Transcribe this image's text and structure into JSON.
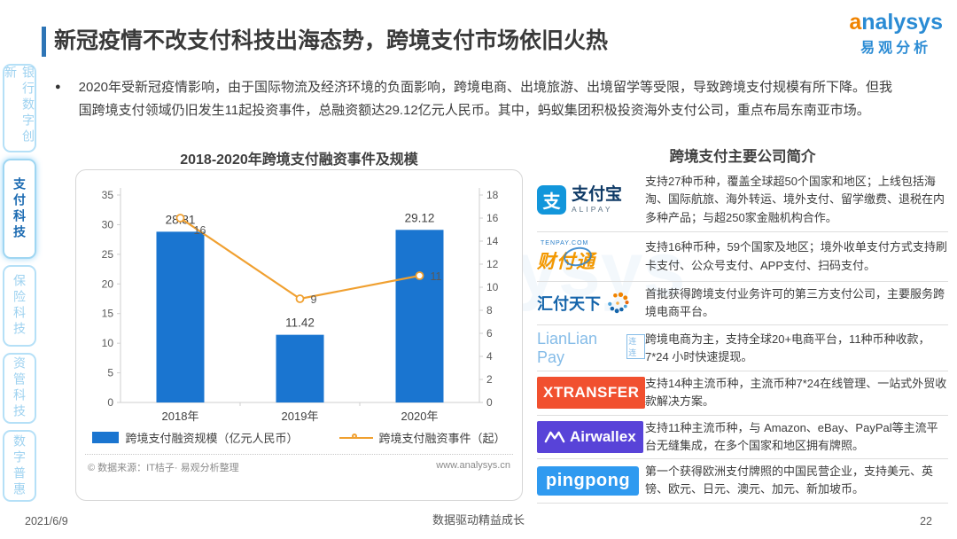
{
  "header": {
    "title": "新冠疫情不改支付科技出海态势，跨境支付市场依旧火热"
  },
  "logo": {
    "name_en": "analysys",
    "name_cn": "易观分析"
  },
  "watermark": {
    "text": "analysys"
  },
  "sidebar": {
    "tabs": [
      {
        "label": "银行数字创新",
        "active": false
      },
      {
        "label": "支付科技",
        "active": true
      },
      {
        "label": "保险科技",
        "active": false
      },
      {
        "label": "资管科技",
        "active": false
      },
      {
        "label": "数字普惠",
        "active": false
      }
    ]
  },
  "bullet": {
    "marker": "●",
    "text": "2020年受新冠疫情影响，由于国际物流及经济环境的负面影响，跨境电商、出境旅游、出境留学等受限，导致跨境支付规模有所下降。但我国跨境支付领域仍旧发生11起投资事件，总融资额达29.12亿元人民币。其中，蚂蚁集团积极投资海外支付公司，重点布局东南亚市场。"
  },
  "chart_data": {
    "type": "bar+line",
    "title": "2018-2020年跨境支付融资事件及规模",
    "categories": [
      "2018年",
      "2019年",
      "2020年"
    ],
    "series": [
      {
        "name": "跨境支付融资规模（亿元人民币）",
        "kind": "bar",
        "axis": "left",
        "color": "#1a75d0",
        "values": [
          28.81,
          11.42,
          29.12
        ]
      },
      {
        "name": "跨境支付融资事件（起）",
        "kind": "line",
        "axis": "right",
        "color": "#f0a030",
        "values": [
          16,
          9,
          11
        ]
      }
    ],
    "left_axis": {
      "min": 0,
      "max": 35,
      "step": 5
    },
    "right_axis": {
      "min": 0,
      "max": 18,
      "step": 2
    },
    "grid": false,
    "legend_position": "bottom",
    "source": "© 数据来源：IT桔子· 易观分析整理",
    "website": "www.analysys.cn"
  },
  "companies": {
    "title": "跨境支付主要公司简介",
    "rows": [
      {
        "company": "支付宝",
        "icon_char": "支",
        "logo_cn": "支付宝",
        "logo_en": "ALIPAY",
        "desc": "支持27种币种，覆盖全球超50个国家和地区；上线包括海淘、国际航旅、海外转运、境外支付、留学缴费、退税在内多种产品；与超250家金融机构合作。"
      },
      {
        "company": "财付通",
        "logo_small": "TENPAY.COM",
        "logo_text": "财付通",
        "desc": "支持16种币种，59个国家及地区；境外收单支付方式支持刷卡支付、公众号支付、APP支付、扫码支付。"
      },
      {
        "company": "汇付天下",
        "logo_text": "汇付天下",
        "desc": "首批获得跨境支付业务许可的第三方支付公司，主要服务跨境电商平台。"
      },
      {
        "company": "连连支付",
        "logo_text": "LianLian Pay",
        "logo_badge": "连连",
        "desc": "跨境电商为主，支持全球20+电商平台，11种币种收款，7*24 小时快速提现。"
      },
      {
        "company": "XTransfer",
        "logo_text": "XTRANSFER",
        "desc": "支持14种主流币种，主流币种7*24在线管理、一站式外贸收款解决方案。"
      },
      {
        "company": "Airwallex",
        "logo_text": "Airwallex",
        "desc": "支持11种主流币种，与 Amazon、eBay、PayPal等主流平台无缝集成，在多个国家和地区拥有牌照。"
      },
      {
        "company": "PingPong",
        "logo_text": "pingpong",
        "desc": "第一个获得欧洲支付牌照的中国民营企业，支持美元、英镑、欧元、日元、澳元、加元、新加坡币。"
      }
    ]
  },
  "footer": {
    "date": "2021/6/9",
    "slogan": "数据驱动精益成长",
    "page": "22"
  }
}
